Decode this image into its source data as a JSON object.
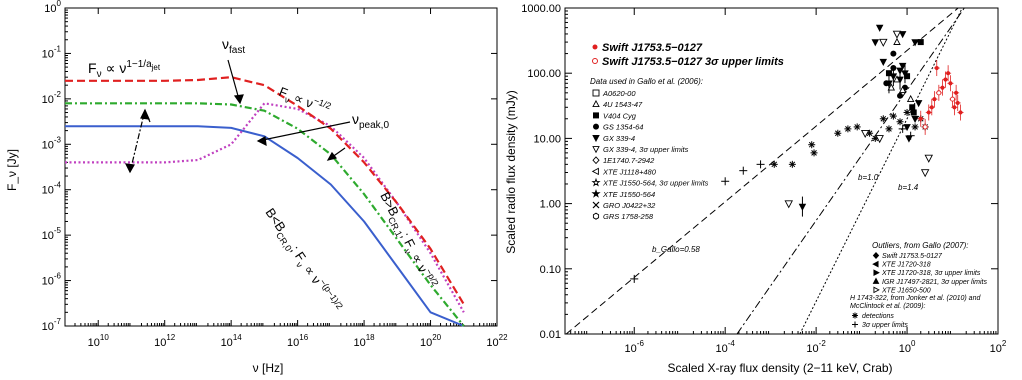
{
  "chart_data": [
    {
      "type": "line",
      "xlabel": "ν [Hz]",
      "ylabel": "F_ν [Jy]",
      "x_scale": "log",
      "y_scale": "log",
      "xlim": [
        1000000000.0,
        1e+22
      ],
      "ylim": [
        1e-07,
        1
      ],
      "x_ticks": [
        "10^10",
        "10^12",
        "10^14",
        "10^16",
        "10^18",
        "10^20",
        "10^22"
      ],
      "y_ticks": [
        "10^-7",
        "10^-6",
        "10^-5",
        "10^-4",
        "10^-3",
        "10^-2",
        "10^-1",
        "10^0"
      ],
      "series": [
        {
          "style": "solid",
          "color": "#3a5fcd",
          "x": [
            1000000000.0,
            10000000000.0,
            1000000000000.0,
            10000000000000.0,
            100000000000000.0,
            1000000000000000.0,
            1e+16,
            1e+17,
            1e+18,
            1e+19,
            1e+20,
            1e+21
          ],
          "y": [
            0.0025,
            0.0025,
            0.0025,
            0.0025,
            0.0023,
            0.0015,
            0.0005,
            0.00013,
            2e-05,
            2e-06,
            2e-07,
            1e-07
          ]
        },
        {
          "style": "dash-dot",
          "color": "#2eaa2e",
          "x": [
            1000000000.0,
            10000000000.0,
            1000000000000.0,
            10000000000000.0,
            100000000000000.0,
            1000000000000000.0,
            1e+16,
            1e+17,
            1e+18,
            1e+19,
            1e+20,
            1e+21
          ],
          "y": [
            0.008,
            0.008,
            0.008,
            0.008,
            0.0075,
            0.0055,
            0.0022,
            0.0006,
            8e-05,
            8e-06,
            8e-07,
            1e-07
          ]
        },
        {
          "style": "dotted",
          "color": "#c040c0",
          "x": [
            1000000000.0,
            10000000000.0,
            1000000000000.0,
            10000000000000.0,
            100000000000000.0,
            1000000000000000.0,
            1e+16,
            1e+17,
            1e+18,
            1e+19,
            1e+20,
            1e+21
          ],
          "y": [
            0.0004,
            0.0004,
            0.0004,
            0.00045,
            0.001,
            0.008,
            0.006,
            0.0025,
            0.0005,
            5e-05,
            4e-06,
            2e-07
          ]
        },
        {
          "style": "dashed",
          "color": "#e02020",
          "x": [
            1000000000.0,
            10000000000.0,
            1000000000000.0,
            10000000000000.0,
            100000000000000.0,
            1000000000000000.0,
            1e+16,
            1e+17,
            1e+18,
            1e+19,
            1e+20,
            1e+21
          ],
          "y": [
            0.025,
            0.025,
            0.025,
            0.026,
            0.03,
            0.02,
            0.007,
            0.0022,
            0.0004,
            5e-05,
            5e-06,
            3e-07
          ]
        }
      ],
      "annotations": [
        {
          "text": "F_ν ∝ ν^(1−1/a_jet)"
        },
        {
          "text": "ν_fast"
        },
        {
          "text": "F_ν ∝ ν^−1/2"
        },
        {
          "text": "ν_peak,0"
        },
        {
          "text": "B>B_CR,1 ; F_ν ∝ ν^−p/2"
        },
        {
          "text": "B<B_CR,0 ; F_ν ∝ ν^−(p−1)/2"
        }
      ]
    },
    {
      "type": "scatter",
      "xlabel": "Scaled X-ray flux density (2−11 keV, Crab)",
      "ylabel": "Scaled radio flux density (mJy)",
      "x_scale": "log",
      "y_scale": "log",
      "xlim": [
        3e-08,
        100
      ],
      "ylim": [
        0.01,
        1000
      ],
      "x_ticks": [
        "10^-6",
        "10^-4",
        "10^-2",
        "10^0",
        "10^2"
      ],
      "y_ticks": [
        "0.01",
        "0.10",
        "1.00",
        "10.00",
        "100.00",
        "1000.00"
      ],
      "legend_main": [
        {
          "symbol": "filled-circle-red",
          "label": "Swift J1753.5−0127"
        },
        {
          "symbol": "open-circle-red",
          "label": "Swift J1753.5−0127 3σ upper limits"
        }
      ],
      "legend_gallo_title": "Data used in Gallo et al. (2006):",
      "legend_gallo": [
        {
          "symbol": "open-square",
          "label": "A0620-00"
        },
        {
          "symbol": "open-triangle-up",
          "label": "4U 1543-47"
        },
        {
          "symbol": "filled-square",
          "label": "V404 Cyg"
        },
        {
          "symbol": "filled-circle",
          "label": "GS 1354-64"
        },
        {
          "symbol": "filled-triangle-down",
          "label": "GX 339-4"
        },
        {
          "symbol": "open-triangle-down",
          "label": "GX 339-4, 3σ upper limits"
        },
        {
          "symbol": "open-diamond",
          "label": "1E1740.7-2942"
        },
        {
          "symbol": "open-triangle-left",
          "label": "XTE J1118+480"
        },
        {
          "symbol": "open-star",
          "label": "XTE J1550-564, 3σ upper limits"
        },
        {
          "symbol": "filled-star",
          "label": "XTE J1550-564"
        },
        {
          "symbol": "cross-x",
          "label": "GRO J0422+32"
        },
        {
          "symbol": "open-hexagon",
          "label": "GRS 1758-258"
        }
      ],
      "legend_outliers_title": "Outliers, from Gallo (2007):",
      "legend_outliers": [
        {
          "symbol": "filled-diamond",
          "label": "Swift J1753.5-0127"
        },
        {
          "symbol": "filled-triangle-left",
          "label": "XTE J1720-318"
        },
        {
          "symbol": "filled-triangle-right",
          "label": "XTE J1720-318, 3σ upper limits"
        },
        {
          "symbol": "filled-triangle-up",
          "label": "IGR J17497-2821, 3σ upper limits"
        },
        {
          "symbol": "open-triangle-right",
          "label": "XTE J1650-500"
        }
      ],
      "legend_h1743_title_1": "H 1743-322, from Jonker et al. (2010) and",
      "legend_h1743_title_2": "McClintock et al. (2009):",
      "legend_h1743": [
        {
          "symbol": "asterisk",
          "label": "detections"
        },
        {
          "symbol": "plus",
          "label": "3σ upper limits"
        }
      ],
      "line_labels": {
        "dashed": "b_Gallo=0.58",
        "dashdot": "b=1.0",
        "dotted": "b=1.4"
      },
      "fit_lines": [
        {
          "style": "dashed",
          "slope": 0.58,
          "norm": 223
        },
        {
          "style": "dashdot",
          "slope": 1.0,
          "norm": 55
        },
        {
          "style": "dotted",
          "slope": 1.4,
          "norm": 20
        }
      ],
      "points_red": {
        "x": [
          2,
          3,
          3.5,
          4,
          5,
          6,
          7,
          8,
          9,
          10,
          11,
          12,
          13,
          15,
          2.5,
          4.5
        ],
        "y": [
          20,
          25,
          30,
          40,
          50,
          60,
          80,
          100,
          70,
          40,
          30,
          50,
          35,
          25,
          15,
          120
        ]
      },
      "points_black": {
        "x": [
          0.3,
          0.4,
          0.5,
          0.6,
          0.7,
          0.8,
          1,
          0.5,
          0.6,
          0.8,
          1.5,
          2,
          0.9,
          1.2,
          1.8,
          1.5,
          1.4,
          0.35,
          0.45,
          1,
          1.1,
          1.3,
          0.7,
          0.8,
          0.2,
          0.25
        ],
        "y": [
          150,
          100,
          120,
          80,
          110,
          130,
          90,
          200,
          300,
          400,
          300,
          300,
          60,
          40,
          35,
          20,
          25,
          70,
          60,
          15,
          10,
          30,
          45,
          55,
          300,
          500
        ]
      },
      "points_asterisk": {
        "x": [
          0.0012,
          0.003,
          0.008,
          0.009,
          0.03,
          0.05,
          0.08,
          0.15,
          0.3,
          0.5,
          0.7,
          1,
          1.5,
          2,
          2.5,
          0.2,
          0.4
        ],
        "y": [
          4,
          4,
          8,
          6,
          12,
          14,
          15,
          12,
          20,
          22,
          18,
          25,
          15,
          20,
          15,
          10,
          14
        ]
      },
      "points_plus": {
        "x": [
          1e-06,
          0.0001,
          0.00025,
          0.0006,
          0.8,
          1.2
        ],
        "y": [
          0.07,
          2.2,
          3.2,
          4,
          14,
          11
        ]
      },
      "points_open_tri": {
        "x": [
          0.0025,
          0.12,
          0.25,
          0.6,
          2.5,
          3,
          0.3
        ],
        "y": [
          1,
          12,
          10,
          400,
          3,
          5,
          300
        ]
      },
      "points_filled_tri": {
        "x": [
          0.005,
          0.4,
          0.5,
          0.7,
          0.9
        ],
        "y": [
          0.9,
          70,
          90,
          80,
          100
        ]
      }
    }
  ]
}
